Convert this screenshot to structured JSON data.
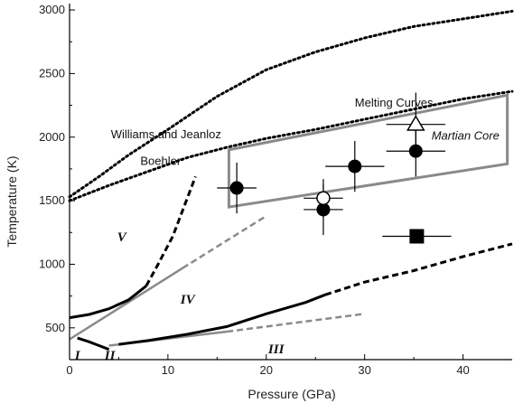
{
  "chart_data": {
    "type": "scatter",
    "title": "",
    "xlabel": "Pressure (GPa)",
    "ylabel": "Temperature (K)",
    "xlim": [
      0,
      45
    ],
    "ylim": [
      250,
      3050
    ],
    "xticks": [
      0,
      10,
      20,
      30,
      40
    ],
    "yticks": [
      500,
      1000,
      1500,
      2000,
      2500,
      3000
    ],
    "grid": false,
    "annotations": [
      {
        "text": "Melting Curves",
        "x": 29,
        "y": 2240,
        "style": "normal"
      },
      {
        "text": "Williams and Jeanloz",
        "x": 4.2,
        "y": 1990,
        "style": "normal"
      },
      {
        "text": "Boehler",
        "x": 7.2,
        "y": 1780,
        "style": "normal"
      },
      {
        "text": "Martian Core",
        "x": 36.8,
        "y": 1980,
        "style": "italic"
      }
    ],
    "phase_labels": [
      {
        "text": "V",
        "x": 5.3,
        "y": 1180
      },
      {
        "text": "IV",
        "x": 12,
        "y": 690
      },
      {
        "text": "III",
        "x": 21,
        "y": 300
      },
      {
        "text": "I",
        "x": 0.8,
        "y": 250
      },
      {
        "text": "II",
        "x": 4.1,
        "y": 250
      }
    ],
    "series": [
      {
        "style": "dotted",
        "points": [
          [
            0,
            1530
          ],
          [
            3,
            1690
          ],
          [
            6,
            1860
          ],
          [
            10,
            2060
          ],
          [
            15,
            2320
          ],
          [
            20,
            2530
          ],
          [
            25,
            2670
          ],
          [
            30,
            2780
          ],
          [
            35,
            2870
          ],
          [
            40,
            2930
          ],
          [
            45,
            2990
          ]
        ]
      },
      {
        "style": "dotted",
        "points": [
          [
            0,
            1500
          ],
          [
            4,
            1620
          ],
          [
            8,
            1730
          ],
          [
            12,
            1840
          ],
          [
            16,
            1920
          ],
          [
            20,
            1990
          ],
          [
            25,
            2060
          ],
          [
            30,
            2140
          ],
          [
            35,
            2220
          ],
          [
            40,
            2300
          ],
          [
            45,
            2360
          ]
        ]
      },
      {
        "style": "solid",
        "points": [
          [
            0,
            580
          ],
          [
            2,
            605
          ],
          [
            4,
            650
          ],
          [
            6,
            720
          ],
          [
            7.8,
            830
          ]
        ]
      },
      {
        "style": "dashed",
        "points": [
          [
            7.8,
            830
          ],
          [
            9,
            1000
          ],
          [
            10.5,
            1220
          ],
          [
            12.8,
            1690
          ]
        ]
      },
      {
        "style": "solid",
        "points": [
          [
            0.8,
            420
          ],
          [
            2,
            390
          ],
          [
            3,
            360
          ],
          [
            4,
            330
          ]
        ]
      },
      {
        "style": "solid",
        "points": [
          [
            5,
            370
          ],
          [
            8,
            400
          ],
          [
            12,
            450
          ],
          [
            16,
            510
          ],
          [
            20,
            610
          ],
          [
            24,
            700
          ],
          [
            26,
            760
          ]
        ]
      },
      {
        "style": "dashed",
        "points": [
          [
            26,
            760
          ],
          [
            30,
            860
          ],
          [
            35,
            950
          ],
          [
            40,
            1060
          ],
          [
            45,
            1160
          ]
        ]
      }
    ],
    "shaded_region": {
      "label": "Martian Core",
      "corners": [
        [
          16.2,
          1450
        ],
        [
          44.5,
          1790
        ],
        [
          44.5,
          2330
        ],
        [
          16.2,
          1900
        ]
      ]
    },
    "phase_boundaries_gray": [
      {
        "style": "solid",
        "points": [
          [
            0,
            410
          ],
          [
            11.5,
            970
          ]
        ]
      },
      {
        "style": "dashed",
        "points": [
          [
            11.5,
            970
          ],
          [
            20,
            1380
          ]
        ]
      },
      {
        "style": "solid",
        "points": [
          [
            4,
            360
          ],
          [
            16,
            470
          ]
        ]
      },
      {
        "style": "dashed",
        "points": [
          [
            16,
            470
          ],
          [
            30,
            610
          ]
        ]
      }
    ],
    "data_points": [
      {
        "x": 17,
        "y": 1600,
        "xerr": 2,
        "yerr": 200,
        "marker": "filled-circle"
      },
      {
        "x": 25.8,
        "y": 1430,
        "xerr": 2,
        "yerr": 200,
        "marker": "filled-circle"
      },
      {
        "x": 25.8,
        "y": 1520,
        "xerr": 2,
        "yerr": 150,
        "marker": "open-circle"
      },
      {
        "x": 29,
        "y": 1770,
        "xerr": 3,
        "yerr": 200,
        "marker": "filled-circle"
      },
      {
        "x": 35.2,
        "y": 1890,
        "xerr": 3,
        "yerr": 200,
        "marker": "filled-circle"
      },
      {
        "x": 35.2,
        "y": 2100,
        "xerr": 3,
        "yerr": 250,
        "marker": "open-triangle"
      },
      {
        "x": 35.3,
        "y": 1220,
        "xerr": 3.5,
        "yerr": 0,
        "marker": "filled-square"
      }
    ]
  }
}
